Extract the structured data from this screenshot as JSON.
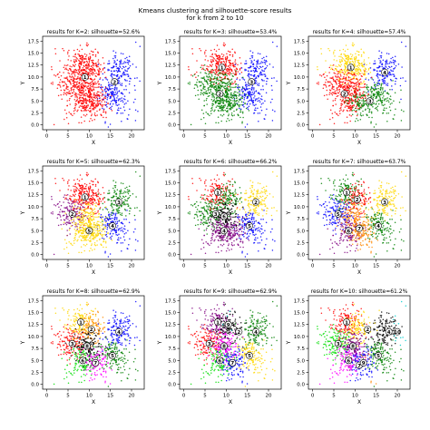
{
  "figure": {
    "title_line1": "Kmeans clustering and silhouette-score results",
    "title_line2": "for k from 2 to 10"
  },
  "chart_data": {
    "type": "scatter",
    "xlabel": "X",
    "ylabel": "Y",
    "xlim": [
      -1,
      23
    ],
    "ylim": [
      -1,
      18.5
    ],
    "xticks": [
      0,
      5,
      10,
      15,
      20
    ],
    "yticks": [
      0.0,
      2.5,
      5.0,
      7.5,
      10.0,
      12.5,
      15.0,
      17.5
    ],
    "centers": [
      [
        6,
        8.5
      ],
      [
        8,
        13
      ],
      [
        10.5,
        11.5
      ],
      [
        17,
        11
      ],
      [
        15.5,
        6
      ],
      [
        8.5,
        5
      ],
      [
        11.5,
        4.5
      ],
      [
        9.5,
        8
      ]
    ],
    "colors": {
      "red": "#ff0000",
      "blue": "#0000ff",
      "green": "#008000",
      "yellow": "#ffd700",
      "purple": "#800080",
      "lime": "#00dd00",
      "cyan": "#00cccc",
      "magenta": "#ff00ff",
      "black": "#000000",
      "orange": "#ff8800"
    },
    "panels": [
      {
        "k": 2,
        "title": "results for K=2:   silhouette=52.6%",
        "silhouette": 52.6,
        "clusters": [
          {
            "label": "1",
            "color": "red",
            "centroid": [
              9,
              10
            ],
            "members": [
              0,
              1,
              2,
              5,
              6,
              7
            ]
          },
          {
            "label": "2",
            "color": "blue",
            "centroid": [
              16,
              9
            ],
            "members": [
              3,
              4
            ]
          }
        ]
      },
      {
        "k": 3,
        "title": "results for K=3:   silhouette=53.4%",
        "silhouette": 53.4,
        "clusters": [
          {
            "label": "1",
            "color": "red",
            "centroid": [
              9,
              12
            ],
            "members": [
              1,
              2
            ]
          },
          {
            "label": "2",
            "color": "green",
            "centroid": [
              8.5,
              6.5
            ],
            "members": [
              0,
              5,
              6,
              7
            ]
          },
          {
            "label": "3",
            "color": "blue",
            "centroid": [
              16,
              9
            ],
            "members": [
              3,
              4
            ]
          }
        ]
      },
      {
        "k": 4,
        "title": "results for K=4:   silhouette=57.4%",
        "silhouette": 57.4,
        "clusters": [
          {
            "label": "1",
            "color": "yellow",
            "centroid": [
              9,
              12
            ],
            "members": [
              1,
              2
            ]
          },
          {
            "label": "2",
            "color": "red",
            "centroid": [
              7.5,
              6.5
            ],
            "members": [
              0,
              5,
              7
            ]
          },
          {
            "label": "3",
            "color": "green",
            "centroid": [
              13.5,
              5
            ],
            "members": [
              4,
              6
            ]
          },
          {
            "label": "4",
            "color": "blue",
            "centroid": [
              17,
              11
            ],
            "members": [
              3
            ]
          }
        ]
      },
      {
        "k": 5,
        "title": "results for K=5:   silhouette=62.3%",
        "silhouette": 62.3,
        "clusters": [
          {
            "label": "1",
            "color": "red",
            "centroid": [
              9,
              12
            ],
            "members": [
              1,
              2
            ]
          },
          {
            "label": "2",
            "color": "purple",
            "centroid": [
              6,
              8.5
            ],
            "members": [
              0
            ]
          },
          {
            "label": "3",
            "color": "green",
            "centroid": [
              17,
              11
            ],
            "members": [
              3
            ]
          },
          {
            "label": "4",
            "color": "blue",
            "centroid": [
              15.5,
              6
            ],
            "members": [
              4
            ]
          },
          {
            "label": "5",
            "color": "yellow",
            "centroid": [
              10,
              5
            ],
            "members": [
              5,
              6,
              7
            ]
          }
        ]
      },
      {
        "k": 6,
        "title": "results for K=6:   silhouette=66.2%",
        "silhouette": 66.2,
        "clusters": [
          {
            "label": "1",
            "color": "red",
            "centroid": [
              8,
              13
            ],
            "members": [
              1
            ]
          },
          {
            "label": "2",
            "color": "yellow",
            "centroid": [
              17,
              11
            ],
            "members": [
              3
            ]
          },
          {
            "label": "3",
            "color": "green",
            "centroid": [
              7.5,
              8.5
            ],
            "members": [
              0,
              2
            ]
          },
          {
            "label": "4",
            "color": "purple",
            "centroid": [
              9.5,
              5
            ],
            "members": [
              5,
              6
            ]
          },
          {
            "label": "5",
            "color": "blue",
            "centroid": [
              15.5,
              6
            ],
            "members": [
              4
            ]
          },
          {
            "label": "6",
            "color": "black",
            "centroid": [
              9.5,
              8
            ],
            "members": [
              7
            ]
          }
        ]
      },
      {
        "k": 7,
        "title": "results for K=7:   silhouette=63.7%",
        "silhouette": 63.7,
        "clusters": [
          {
            "label": "1",
            "color": "green",
            "centroid": [
              8,
              13
            ],
            "members": [
              1
            ]
          },
          {
            "label": "2",
            "color": "red",
            "centroid": [
              10.5,
              11.5
            ],
            "members": [
              2
            ]
          },
          {
            "label": "3",
            "color": "yellow",
            "centroid": [
              17,
              11
            ],
            "members": [
              3
            ]
          },
          {
            "label": "4",
            "color": "green",
            "centroid": [
              15.5,
              6
            ],
            "members": [
              4
            ]
          },
          {
            "label": "5",
            "color": "blue",
            "centroid": [
              6,
              8.5
            ],
            "members": [
              0
            ]
          },
          {
            "label": "6",
            "color": "purple",
            "centroid": [
              8.5,
              5
            ],
            "members": [
              5
            ]
          },
          {
            "label": "7",
            "color": "orange",
            "centroid": [
              11,
              5.5
            ],
            "members": [
              6,
              7
            ]
          }
        ]
      },
      {
        "k": 8,
        "title": "results for K=8:   silhouette=62.9%",
        "silhouette": 62.9,
        "clusters": [
          {
            "label": "1",
            "color": "yellow",
            "centroid": [
              8,
              13
            ],
            "members": [
              1
            ]
          },
          {
            "label": "2",
            "color": "orange",
            "centroid": [
              10.5,
              11.5
            ],
            "members": [
              2
            ]
          },
          {
            "label": "3",
            "color": "red",
            "centroid": [
              6,
              8.5
            ],
            "members": [
              0
            ]
          },
          {
            "label": "4",
            "color": "blue",
            "centroid": [
              17,
              11
            ],
            "members": [
              3
            ]
          },
          {
            "label": "5",
            "color": "green",
            "centroid": [
              15.5,
              6
            ],
            "members": [
              4
            ]
          },
          {
            "label": "6",
            "color": "lime",
            "centroid": [
              8.5,
              5
            ],
            "members": [
              5
            ]
          },
          {
            "label": "7",
            "color": "magenta",
            "centroid": [
              11.5,
              4.5
            ],
            "members": [
              6
            ]
          },
          {
            "label": "8",
            "color": "black",
            "centroid": [
              9.5,
              8
            ],
            "members": [
              7
            ]
          }
        ]
      },
      {
        "k": 9,
        "title": "results for K=9:   silhouette=62.9%",
        "silhouette": 62.9,
        "clusters": [
          {
            "label": "1",
            "color": "purple",
            "centroid": [
              8,
              13
            ],
            "members": [
              1
            ]
          },
          {
            "label": "2",
            "color": "black",
            "centroid": [
              13,
              11
            ],
            "members": [
              2
            ]
          },
          {
            "label": "3",
            "color": "red",
            "centroid": [
              6,
              8.5
            ],
            "members": [
              0
            ]
          },
          {
            "label": "4",
            "color": "green",
            "centroid": [
              17,
              11
            ],
            "members": [
              3
            ]
          },
          {
            "label": "5",
            "color": "yellow",
            "centroid": [
              15.5,
              6
            ],
            "members": [
              4
            ]
          },
          {
            "label": "6",
            "color": "lime",
            "centroid": [
              8.5,
              5
            ],
            "members": [
              5
            ]
          },
          {
            "label": "7",
            "color": "blue",
            "centroid": [
              11.5,
              4.5
            ],
            "members": [
              6
            ]
          },
          {
            "label": "8",
            "color": "magenta",
            "centroid": [
              9.5,
              8
            ],
            "members": [
              7
            ]
          },
          {
            "label": "9",
            "color": "cyan",
            "centroid": [
              10.5,
              12.5
            ],
            "members": []
          }
        ]
      },
      {
        "k": 10,
        "title": "results for K=10:   silhouette=61.2%",
        "silhouette": 61.2,
        "clusters": [
          {
            "label": "1",
            "color": "red",
            "centroid": [
              8,
              13
            ],
            "members": [
              1
            ]
          },
          {
            "label": "2",
            "color": "yellow",
            "centroid": [
              13,
              11.5
            ],
            "members": [
              2
            ]
          },
          {
            "label": "3",
            "color": "lime",
            "centroid": [
              6,
              8.5
            ],
            "members": [
              0
            ]
          },
          {
            "label": "4",
            "color": "black",
            "centroid": [
              18,
              11
            ],
            "members": [
              3
            ]
          },
          {
            "label": "5",
            "color": "green",
            "centroid": [
              15.5,
              6
            ],
            "members": [
              4
            ]
          },
          {
            "label": "6",
            "color": "magenta",
            "centroid": [
              8.5,
              5
            ],
            "members": [
              5
            ]
          },
          {
            "label": "7",
            "color": "blue",
            "centroid": [
              11,
              4
            ],
            "members": [
              6
            ]
          },
          {
            "label": "8",
            "color": "purple",
            "centroid": [
              9.5,
              8
            ],
            "members": [
              7
            ]
          },
          {
            "label": "9",
            "color": "orange",
            "centroid": [
              12,
              4.5
            ],
            "members": []
          },
          {
            "label": "10",
            "color": "cyan",
            "centroid": [
              20,
              11
            ],
            "members": []
          }
        ]
      }
    ]
  }
}
